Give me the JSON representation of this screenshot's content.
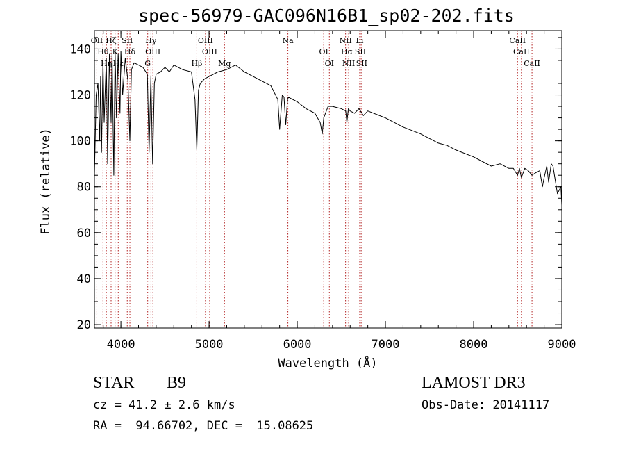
{
  "chart_data": {
    "type": "line",
    "title": "spec-56979-GAC096N16B1_sp02-202.fits",
    "xlabel": "Wavelength (Å)",
    "ylabel": "Flux (relative)",
    "xlim": [
      3700,
      9000
    ],
    "ylim": [
      18.5,
      148
    ],
    "x_ticks": [
      4000,
      5000,
      6000,
      7000,
      8000,
      9000
    ],
    "y_ticks": [
      20,
      40,
      60,
      80,
      100,
      120,
      140
    ],
    "x_tick_labels": [
      "4000",
      "5000",
      "6000",
      "7000",
      "8000",
      "9000"
    ],
    "y_tick_labels": [
      "20",
      "40",
      "60",
      "80",
      "100",
      "120",
      "140"
    ],
    "series": [
      {
        "name": "spectrum",
        "color": "#000000",
        "x": [
          3700,
          3720,
          3740,
          3760,
          3770,
          3780,
          3797,
          3810,
          3835,
          3850,
          3870,
          3889,
          3900,
          3920,
          3934,
          3950,
          3969,
          3990,
          4000,
          4020,
          4050,
          4080,
          4102,
          4120,
          4150,
          4200,
          4250,
          4300,
          4320,
          4340,
          4360,
          4380,
          4400,
          4450,
          4500,
          4550,
          4600,
          4700,
          4800,
          4840,
          4861,
          4880,
          4900,
          4950,
          5000,
          5100,
          5200,
          5300,
          5400,
          5500,
          5600,
          5700,
          5780,
          5800,
          5830,
          5850,
          5870,
          5890,
          5900,
          5950,
          6000,
          6100,
          6200,
          6260,
          6284,
          6300,
          6350,
          6400,
          6500,
          6550,
          6563,
          6580,
          6600,
          6650,
          6700,
          6750,
          6800,
          7000,
          7200,
          7400,
          7600,
          7700,
          7800,
          8000,
          8200,
          8300,
          8400,
          8450,
          8498,
          8520,
          8542,
          8580,
          8620,
          8662,
          8700,
          8750,
          8780,
          8800,
          8830,
          8850,
          8880,
          8900,
          8950,
          8990,
          9000
        ],
        "y": [
          85,
          120,
          125,
          100,
          128,
          95,
          135,
          108,
          136,
          90,
          138,
          108,
          139,
          85,
          140,
          110,
          138,
          112,
          139,
          120,
          136,
          126,
          100,
          131,
          134,
          133,
          132,
          129,
          95,
          128,
          90,
          125,
          129,
          130,
          132,
          130,
          133,
          131,
          130,
          118,
          96,
          122,
          125,
          127,
          128,
          130,
          131,
          133,
          130,
          128,
          126,
          124,
          118,
          105,
          120,
          119,
          107,
          118,
          119,
          118,
          117,
          114,
          112,
          108,
          103,
          110,
          115,
          115,
          114,
          113,
          108,
          114,
          113,
          112,
          114,
          111,
          113,
          110,
          106,
          103,
          99,
          98,
          96,
          93,
          89,
          90,
          88,
          88,
          85,
          88,
          84,
          88,
          87,
          85,
          86,
          87,
          80,
          84,
          89,
          82,
          90,
          89,
          77,
          80,
          72
        ]
      }
    ],
    "line_markers": [
      {
        "label": "OII",
        "wavelength": 3727
      },
      {
        "label": "Hθ",
        "wavelength": 3797
      },
      {
        "label": "Hη",
        "wavelength": 3835
      },
      {
        "label": "Hζ",
        "wavelength": 3889
      },
      {
        "label": "K",
        "wavelength": 3934
      },
      {
        "label": "Hε",
        "wavelength": 3970
      },
      {
        "label": "SII",
        "wavelength": 4072
      },
      {
        "label": "Hδ",
        "wavelength": 4102
      },
      {
        "label": "G",
        "wavelength": 4304
      },
      {
        "label": "Hγ",
        "wavelength": 4341
      },
      {
        "label": "OIII",
        "wavelength": 4363
      },
      {
        "label": "Hβ",
        "wavelength": 4861
      },
      {
        "label": "OIII",
        "wavelength": 4959
      },
      {
        "label": "OIII",
        "wavelength": 5007
      },
      {
        "label": "Mg",
        "wavelength": 5175
      },
      {
        "label": "Na",
        "wavelength": 5894
      },
      {
        "label": "OI",
        "wavelength": 6300
      },
      {
        "label": "OI",
        "wavelength": 6364
      },
      {
        "label": "NII",
        "wavelength": 6548
      },
      {
        "label": "Hα",
        "wavelength": 6563
      },
      {
        "label": "NII",
        "wavelength": 6583
      },
      {
        "label": "Li",
        "wavelength": 6708
      },
      {
        "label": "SII",
        "wavelength": 6716
      },
      {
        "label": "SII",
        "wavelength": 6731
      },
      {
        "label": "CaII",
        "wavelength": 8498
      },
      {
        "label": "CaII",
        "wavelength": 8542
      },
      {
        "label": "CaII",
        "wavelength": 8662
      }
    ],
    "marker_color": "#b22222"
  },
  "info": {
    "object_type": "STAR",
    "subclass": "B9",
    "survey": "LAMOST DR3",
    "cz": "cz = 41.2 ± 2.6 km/s",
    "obs_date": "Obs-Date: 20141117",
    "ra_dec": "RA =  94.66702, DEC =  15.08625"
  }
}
